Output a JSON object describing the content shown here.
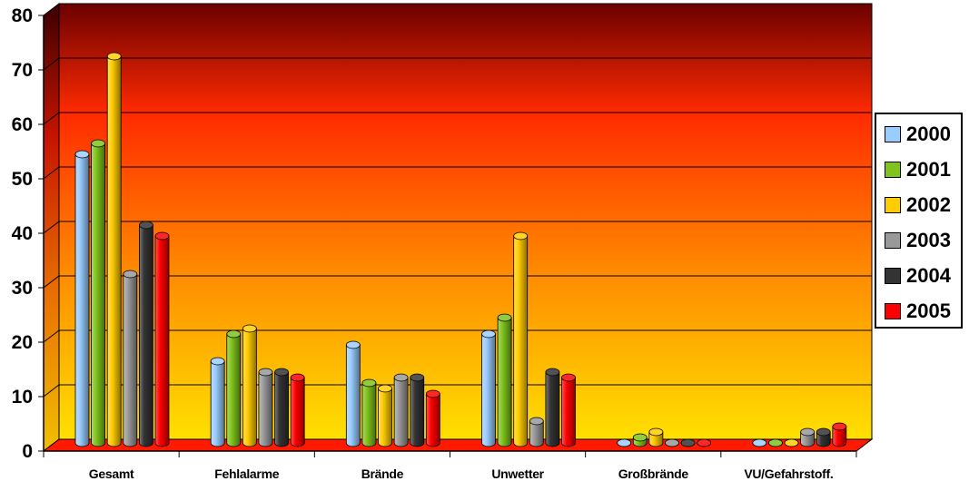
{
  "chart_data": {
    "type": "bar",
    "categories": [
      "Gesamt",
      "Fehlalarme",
      "Brände",
      "Unwetter",
      "Großbrände",
      "VU/Gefahrstoff."
    ],
    "series": [
      {
        "name": "2000",
        "color": "#99ccff",
        "values": [
          53,
          15,
          18,
          20,
          0,
          0
        ]
      },
      {
        "name": "2001",
        "color": "#7fc31c",
        "values": [
          55,
          20,
          11,
          23,
          1,
          0
        ]
      },
      {
        "name": "2002",
        "color": "#ffcc00",
        "values": [
          71,
          21,
          10,
          38,
          2,
          0
        ]
      },
      {
        "name": "2003",
        "color": "#999999",
        "values": [
          31,
          13,
          12,
          4,
          0,
          2
        ]
      },
      {
        "name": "2004",
        "color": "#333333",
        "values": [
          40,
          13,
          12,
          13,
          0,
          2
        ]
      },
      {
        "name": "2005",
        "color": "#ff0000",
        "values": [
          38,
          12,
          9,
          12,
          0,
          3
        ]
      }
    ],
    "yticks": [
      "0",
      "10",
      "20",
      "30",
      "40",
      "50",
      "60",
      "70",
      "80"
    ],
    "ylim": [
      0,
      80
    ],
    "title": "",
    "xlabel": "",
    "ylabel": "",
    "grid": true,
    "legend_position": "right",
    "background_gradient": [
      "#6b0000",
      "#ff2a00",
      "#ff8c00",
      "#ffe000"
    ]
  }
}
